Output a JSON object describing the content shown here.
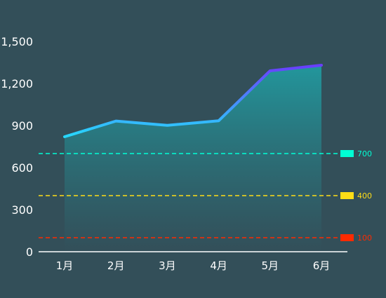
{
  "chart_data": {
    "type": "area",
    "title": "",
    "xlabel": "",
    "ylabel": "",
    "categories": [
      "1月",
      "2月",
      "3月",
      "4月",
      "5月",
      "6月"
    ],
    "series": [
      {
        "values": [
          820,
          932,
          901,
          934,
          1290,
          1330
        ]
      }
    ],
    "ylim": [
      0,
      1500
    ],
    "yticks": [
      "0",
      "300",
      "600",
      "900",
      "1,200",
      "1,500"
    ],
    "grid": false,
    "mark_lines": [
      {
        "value": 700,
        "label": "700",
        "color": "#00ffd5"
      },
      {
        "value": 400,
        "label": "400",
        "color": "#ffde17"
      },
      {
        "value": 100,
        "label": "100",
        "color": "#ff2a00"
      }
    ],
    "line_colors": [
      "#26d9ff",
      "#6a3dff"
    ],
    "area_colors": [
      "#1fa3a8",
      "#334f59"
    ],
    "axis_color": "#ffffff"
  }
}
